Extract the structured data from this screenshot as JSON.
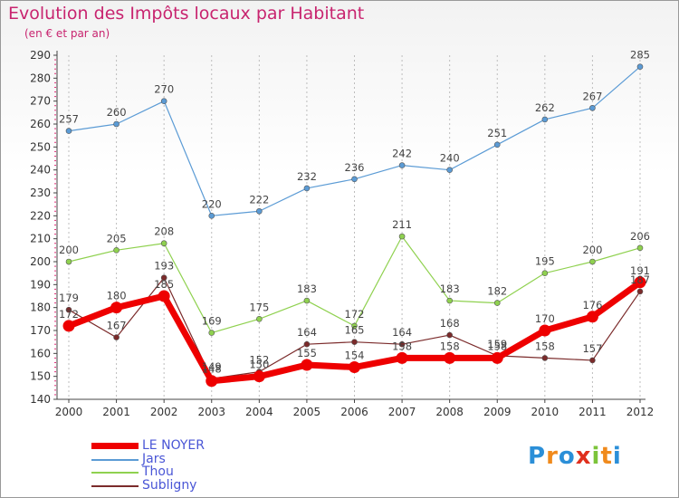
{
  "header": {
    "title": "Evolution des Impôts locaux par Habitant",
    "subtitle": "(en € et par an)"
  },
  "logo": {
    "letters": [
      {
        "ch": "P",
        "color": "#2b8fd8"
      },
      {
        "ch": "r",
        "color": "#f08a1c"
      },
      {
        "ch": "o",
        "color": "#2b8fd8"
      },
      {
        "ch": "x",
        "color": "#e0301e"
      },
      {
        "ch": "i",
        "color": "#7cc43a"
      },
      {
        "ch": "t",
        "color": "#f08a1c"
      },
      {
        "ch": "i",
        "color": "#2b8fd8"
      }
    ]
  },
  "chart_data": {
    "type": "line",
    "title": "Evolution des Impôts locaux par Habitant",
    "subtitle": "(en € et par an)",
    "xlabel": "",
    "ylabel": "",
    "x": [
      "2000",
      "2001",
      "2002",
      "2003",
      "2004",
      "2005",
      "2006",
      "2007",
      "2008",
      "2009",
      "2010",
      "2011",
      "2012"
    ],
    "ylim": [
      140,
      290
    ],
    "yticks": [
      140,
      150,
      160,
      170,
      180,
      190,
      200,
      210,
      220,
      230,
      240,
      250,
      260,
      270,
      280,
      290
    ],
    "grid": "vertical dashed",
    "legend_position": "bottom-left",
    "series": [
      {
        "name": "LE NOYER",
        "color": "#ee0000",
        "thick": true,
        "values": [
          172,
          180,
          185,
          148,
          150,
          155,
          154,
          158,
          158,
          158,
          170,
          176,
          191
        ]
      },
      {
        "name": "Jars",
        "color": "#5b9bd5",
        "thick": false,
        "values": [
          257,
          260,
          270,
          220,
          222,
          232,
          236,
          242,
          240,
          251,
          262,
          267,
          285
        ]
      },
      {
        "name": "Thou",
        "color": "#8fd14f",
        "thick": false,
        "values": [
          200,
          205,
          208,
          169,
          175,
          183,
          172,
          211,
          183,
          182,
          195,
          200,
          206
        ]
      },
      {
        "name": "Subligny",
        "color": "#7b2b2b",
        "thick": false,
        "values": [
          179,
          167,
          193,
          149,
          152,
          164,
          165,
          164,
          168,
          159,
          158,
          157,
          187
        ]
      }
    ]
  }
}
